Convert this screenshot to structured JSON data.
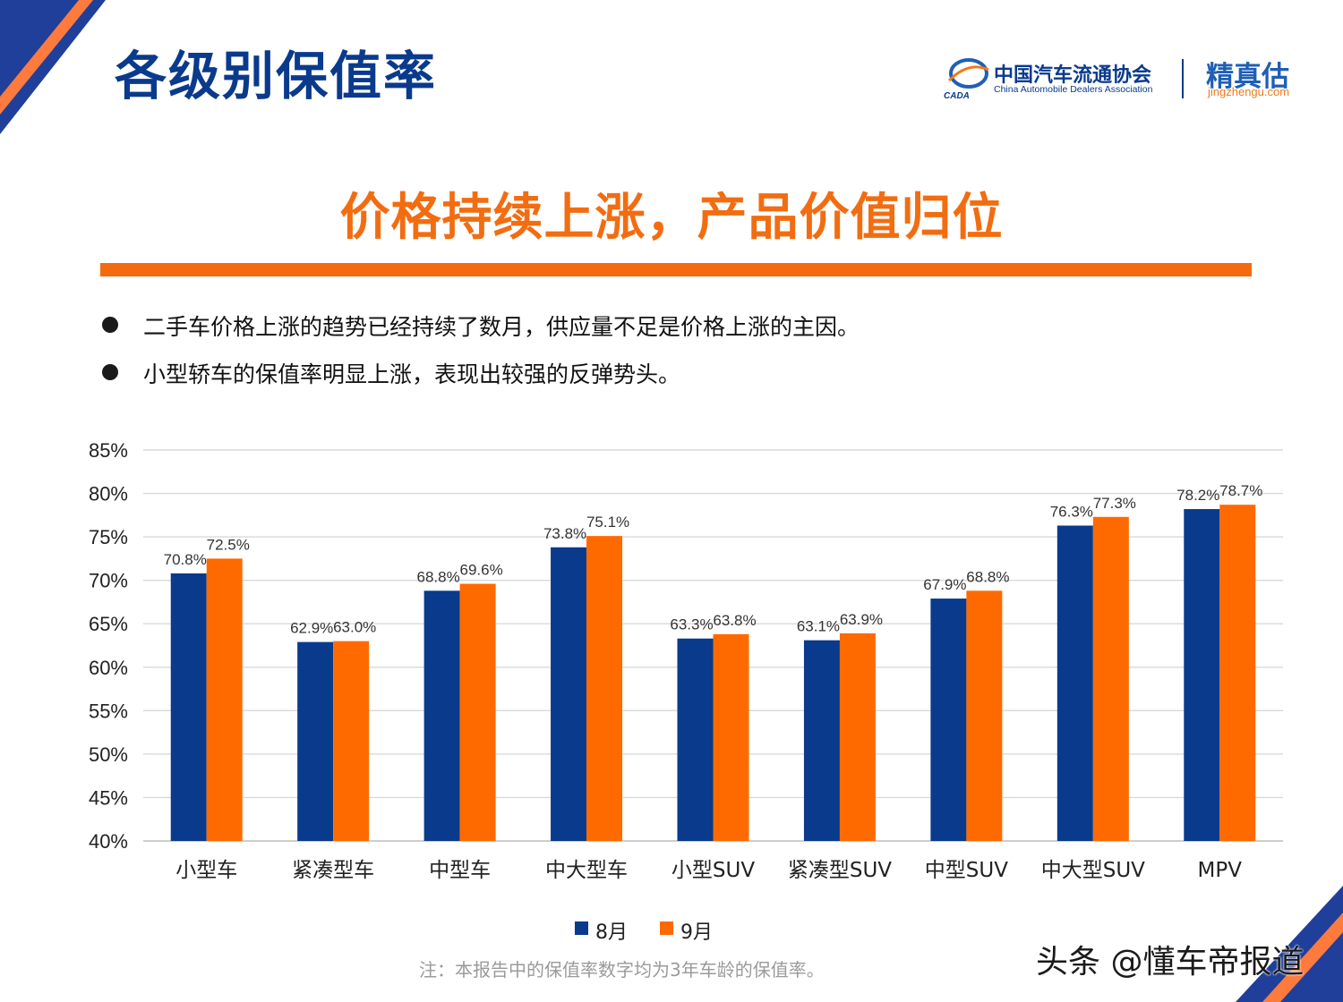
{
  "header": {
    "title": "各级别保值率",
    "association_cn": "中国汽车流通协会",
    "association_en": "China Automobile Dealers Association",
    "logo_mark": "CADA",
    "brand_name": "精真估",
    "brand_url": "jingzhengu.com"
  },
  "headline": "价格持续上涨，产品价值归位",
  "bullets": [
    "二手车价格上涨的趋势已经持续了数月，供应量不足是价格上涨的主因。",
    "小型轿车的保值率明显上涨，表现出较强的反弹势头。"
  ],
  "colors": {
    "title_blue": "#0a3a8c",
    "accent_orange": "#f56a0f",
    "series_aug": "#0a3a8c",
    "series_sep": "#ff6a00"
  },
  "chart_data": {
    "type": "bar",
    "categories": [
      "小型车",
      "紧凑型车",
      "中型车",
      "中大型车",
      "小型SUV",
      "紧凑型SUV",
      "中型SUV",
      "中大型SUV",
      "MPV"
    ],
    "series": [
      {
        "name": "8月",
        "values": [
          70.8,
          62.9,
          68.8,
          73.8,
          63.3,
          63.1,
          67.9,
          76.3,
          78.2
        ],
        "labels": [
          "70.8%",
          "62.9%",
          "68.8%",
          "73.8%",
          "63.3%",
          "63.1%",
          "67.9%",
          "76.3%",
          "78.2%"
        ]
      },
      {
        "name": "9月",
        "values": [
          72.5,
          63.0,
          69.6,
          75.1,
          63.8,
          63.9,
          68.8,
          77.3,
          78.7
        ],
        "labels": [
          "72.5%",
          "63.0%",
          "69.6%",
          "75.1%",
          "63.8%",
          "63.9%",
          "68.8%",
          "77.3%",
          "78.7%"
        ]
      }
    ],
    "ylim": [
      40,
      85
    ],
    "yticks": [
      "40%",
      "45%",
      "50%",
      "55%",
      "60%",
      "65%",
      "70%",
      "75%",
      "80%",
      "85%"
    ],
    "grid": true,
    "legend": "bottom-center"
  },
  "note": "注：本报告中的保值率数字均为3年车龄的保值率。",
  "watermark": "头条 @懂车帝报道"
}
